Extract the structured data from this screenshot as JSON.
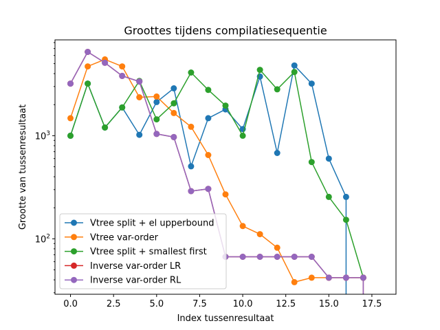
{
  "chart_data": {
    "type": "line",
    "title": "Groottes tijdens compilatiesequentie",
    "xlabel": "Index tussenresultaat",
    "ylabel": "Grootte van tussenresultaat",
    "yscale": "log",
    "xlim": [
      -0.9,
      18.9
    ],
    "ylim": [
      29,
      8500
    ],
    "xticks": [
      0.0,
      2.5,
      5.0,
      7.5,
      10.0,
      12.5,
      15.0,
      17.5
    ],
    "xtick_labels": [
      "0.0",
      "2.5",
      "5.0",
      "7.5",
      "10.0",
      "12.5",
      "15.0",
      "17.5"
    ],
    "yticks": [
      100,
      1000
    ],
    "legend_position": "lower-left",
    "series": [
      {
        "name": "Vtree split + el upperbound",
        "color": "#1f77b4",
        "x": [
          0,
          1,
          2,
          3,
          4,
          5,
          6,
          7,
          8,
          9,
          10,
          11,
          12,
          13,
          14,
          15,
          16,
          16
        ],
        "y": [
          1000,
          3200,
          1200,
          1880,
          1020,
          2120,
          2880,
          505,
          1480,
          1800,
          1160,
          3750,
          680,
          4800,
          3200,
          600,
          255,
          20
        ]
      },
      {
        "name": "Vtree var-order",
        "color": "#ff7f0e",
        "x": [
          0,
          1,
          2,
          3,
          4,
          5,
          6,
          7,
          8,
          9,
          10,
          11,
          12,
          13,
          14,
          15,
          16,
          17
        ],
        "y": [
          1480,
          4700,
          5500,
          4700,
          2360,
          2400,
          1660,
          1220,
          650,
          270,
          133,
          111,
          82,
          38,
          42,
          42,
          42,
          42
        ]
      },
      {
        "name": "Vtree split + smallest first",
        "color": "#2ca02c",
        "x": [
          0,
          1,
          2,
          3,
          4,
          5,
          6,
          7,
          8,
          9,
          10,
          11,
          12,
          13,
          14,
          15,
          16,
          17
        ],
        "y": [
          1000,
          3200,
          1200,
          1880,
          3400,
          1440,
          2060,
          4100,
          2780,
          1960,
          1000,
          4350,
          2820,
          4150,
          555,
          255,
          153,
          42
        ]
      },
      {
        "name": "Inverse var-order LR",
        "color": "#d62728",
        "x": [
          0,
          1,
          2,
          3,
          4,
          5,
          6,
          7,
          8,
          9,
          10,
          11,
          12,
          13,
          14,
          15,
          16,
          17,
          17
        ],
        "y": [
          3200,
          6500,
          5100,
          3800,
          3350,
          1040,
          970,
          290,
          305,
          67,
          67,
          67,
          67,
          67,
          67,
          42,
          42,
          42,
          20
        ]
      },
      {
        "name": "Inverse var-order RL",
        "color": "#9467bd",
        "x": [
          0,
          1,
          2,
          3,
          4,
          5,
          6,
          7,
          8,
          9,
          10,
          11,
          12,
          13,
          14,
          15,
          16,
          17,
          17
        ],
        "y": [
          3200,
          6500,
          5100,
          3800,
          3350,
          1040,
          970,
          290,
          305,
          67,
          67,
          67,
          67,
          67,
          67,
          42,
          42,
          42,
          20
        ]
      }
    ]
  }
}
